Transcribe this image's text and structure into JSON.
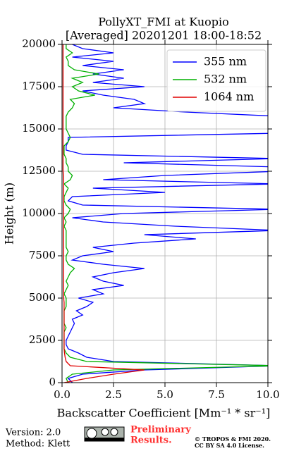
{
  "chart_data": {
    "type": "line",
    "title": "PollyXT_FMI at Kuopio",
    "subtitle": "[Averaged] 20201201 18:00-18:52",
    "xlabel": "Backscatter Coefficient [Mm⁻¹ * sr⁻¹]",
    "ylabel": "Height (m)",
    "heights": [
      0,
      250,
      500,
      750,
      1000,
      1250,
      1500,
      1750,
      2000,
      2250,
      2500,
      2750,
      3000,
      3250,
      3500,
      3750,
      4000,
      4250,
      4500,
      4750,
      5000,
      5250,
      5500,
      5750,
      6000,
      6250,
      6500,
      6750,
      7000,
      7250,
      7500,
      7750,
      8000,
      8250,
      8500,
      8750,
      9000,
      9250,
      9500,
      9750,
      10000,
      10250,
      10500,
      10750,
      11000,
      11250,
      11500,
      11750,
      12000,
      12250,
      12500,
      12750,
      13000,
      13250,
      13500,
      13750,
      14000,
      14250,
      14500,
      14750,
      15000,
      15250,
      15500,
      15750,
      16000,
      16250,
      16500,
      16750,
      17000,
      17250,
      17500,
      17750,
      18000,
      18250,
      18500,
      18750,
      19000,
      19250,
      19500,
      19750,
      20000
    ],
    "series": [
      {
        "name": "355 nm",
        "color": "#0000ff",
        "values": [
          0.5,
          0.3,
          1.0,
          4.0,
          10.5,
          2.5,
          1.2,
          0.8,
          0.3,
          0.2,
          0.2,
          0.3,
          0.4,
          0.5,
          0.6,
          0.5,
          1.0,
          0.7,
          1.2,
          1.5,
          0.8,
          2.0,
          1.5,
          3.0,
          2.0,
          1.5,
          2.5,
          4.0,
          2.0,
          0.5,
          1.0,
          2.5,
          1.5,
          3.5,
          6.5,
          4.0,
          10.5,
          5.5,
          2.0,
          0.5,
          3.0,
          10.5,
          1.0,
          0.3,
          0.5,
          5.0,
          1.5,
          10.5,
          2.0,
          5.0,
          10.5,
          10.5,
          3.0,
          10.5,
          1.0,
          0.2,
          0.2,
          0.3,
          0.3,
          10.5,
          10.5,
          10.5,
          10.5,
          10.5,
          6.0,
          2.5,
          4.0,
          3.5,
          2.0,
          1.0,
          4.0,
          1.5,
          3.0,
          1.5,
          3.0,
          1.0,
          2.5,
          0.5,
          2.5,
          1.0,
          0.5
        ]
      },
      {
        "name": "532 nm",
        "color": "#00b000",
        "values": [
          0.3,
          0.2,
          0.5,
          2.5,
          10.5,
          1.2,
          0.4,
          0.2,
          0.1,
          0.1,
          0.1,
          0.1,
          0.1,
          0.2,
          0.1,
          0.1,
          0.1,
          0.1,
          0.2,
          0.2,
          0.2,
          0.1,
          0.2,
          0.3,
          0.2,
          0.3,
          0.4,
          0.6,
          0.3,
          0.2,
          0.2,
          0.3,
          0.2,
          0.2,
          0.2,
          0.2,
          0.2,
          0.1,
          0.2,
          0.1,
          0.3,
          0.4,
          0.2,
          0.1,
          0.1,
          0.2,
          0.3,
          0.1,
          0.4,
          0.5,
          0.3,
          0.3,
          0.2,
          0.2,
          0.1,
          0.1,
          0.1,
          0.3,
          0.4,
          0.3,
          0.2,
          0.2,
          0.2,
          0.2,
          0.3,
          0.5,
          0.6,
          0.4,
          1.6,
          0.8,
          0.5,
          1.0,
          0.5,
          1.8,
          0.6,
          0.3,
          0.3,
          0.2,
          0.5,
          0.2,
          0.2
        ]
      },
      {
        "name": "1064 nm",
        "color": "#e00000",
        "values": [
          0.1,
          1.2,
          2.5,
          4.0,
          0.4,
          0.2,
          0.15,
          0.12,
          0.1,
          0.1,
          0.1,
          0.1,
          0.1,
          0.1,
          0.1,
          0.1,
          0.1,
          0.1,
          0.1,
          0.1,
          0.08,
          0.08,
          0.08,
          0.08,
          0.08,
          0.08,
          0.08,
          0.08,
          0.08,
          0.08,
          0.08,
          0.08,
          0.08,
          0.08,
          0.08,
          0.08,
          0.08,
          0.08,
          0.08,
          0.08,
          0.08,
          0.08,
          0.08,
          0.08,
          0.08,
          0.08,
          0.08,
          0.08,
          0.08,
          0.08,
          0.05,
          0.05,
          0.05,
          0.05,
          0.05,
          0.05,
          0.05,
          0.05,
          0.05,
          0.05,
          0.05,
          0.05,
          0.05,
          0.05,
          0.05,
          0.05,
          0.05,
          0.05,
          0.05,
          0.05,
          0.05,
          0.05,
          0.05,
          0.05,
          0.05,
          0.05,
          0.05,
          0.05,
          0.05,
          0.05,
          0.05
        ]
      }
    ],
    "xlim": [
      0,
      10
    ],
    "ylim": [
      0,
      20000
    ],
    "xticks": [
      {
        "value": 0,
        "label": "0.0"
      },
      2.5,
      {
        "value": 5,
        "label": "5.0"
      },
      7.5,
      {
        "value": 10,
        "label": "10.0"
      }
    ],
    "yticks": [
      0,
      2500,
      5000,
      7500,
      10000,
      12500,
      15000,
      17500,
      20000
    ],
    "grid": true,
    "legend": "upper right"
  },
  "footer": {
    "version": "Version: 2.0",
    "method": "Method: Klett",
    "notice_line1": "Preliminary",
    "notice_line2": "Results.",
    "copyright": "© TROPOS & FMI 2020.",
    "license": "CC BY SA 4.0 License."
  }
}
